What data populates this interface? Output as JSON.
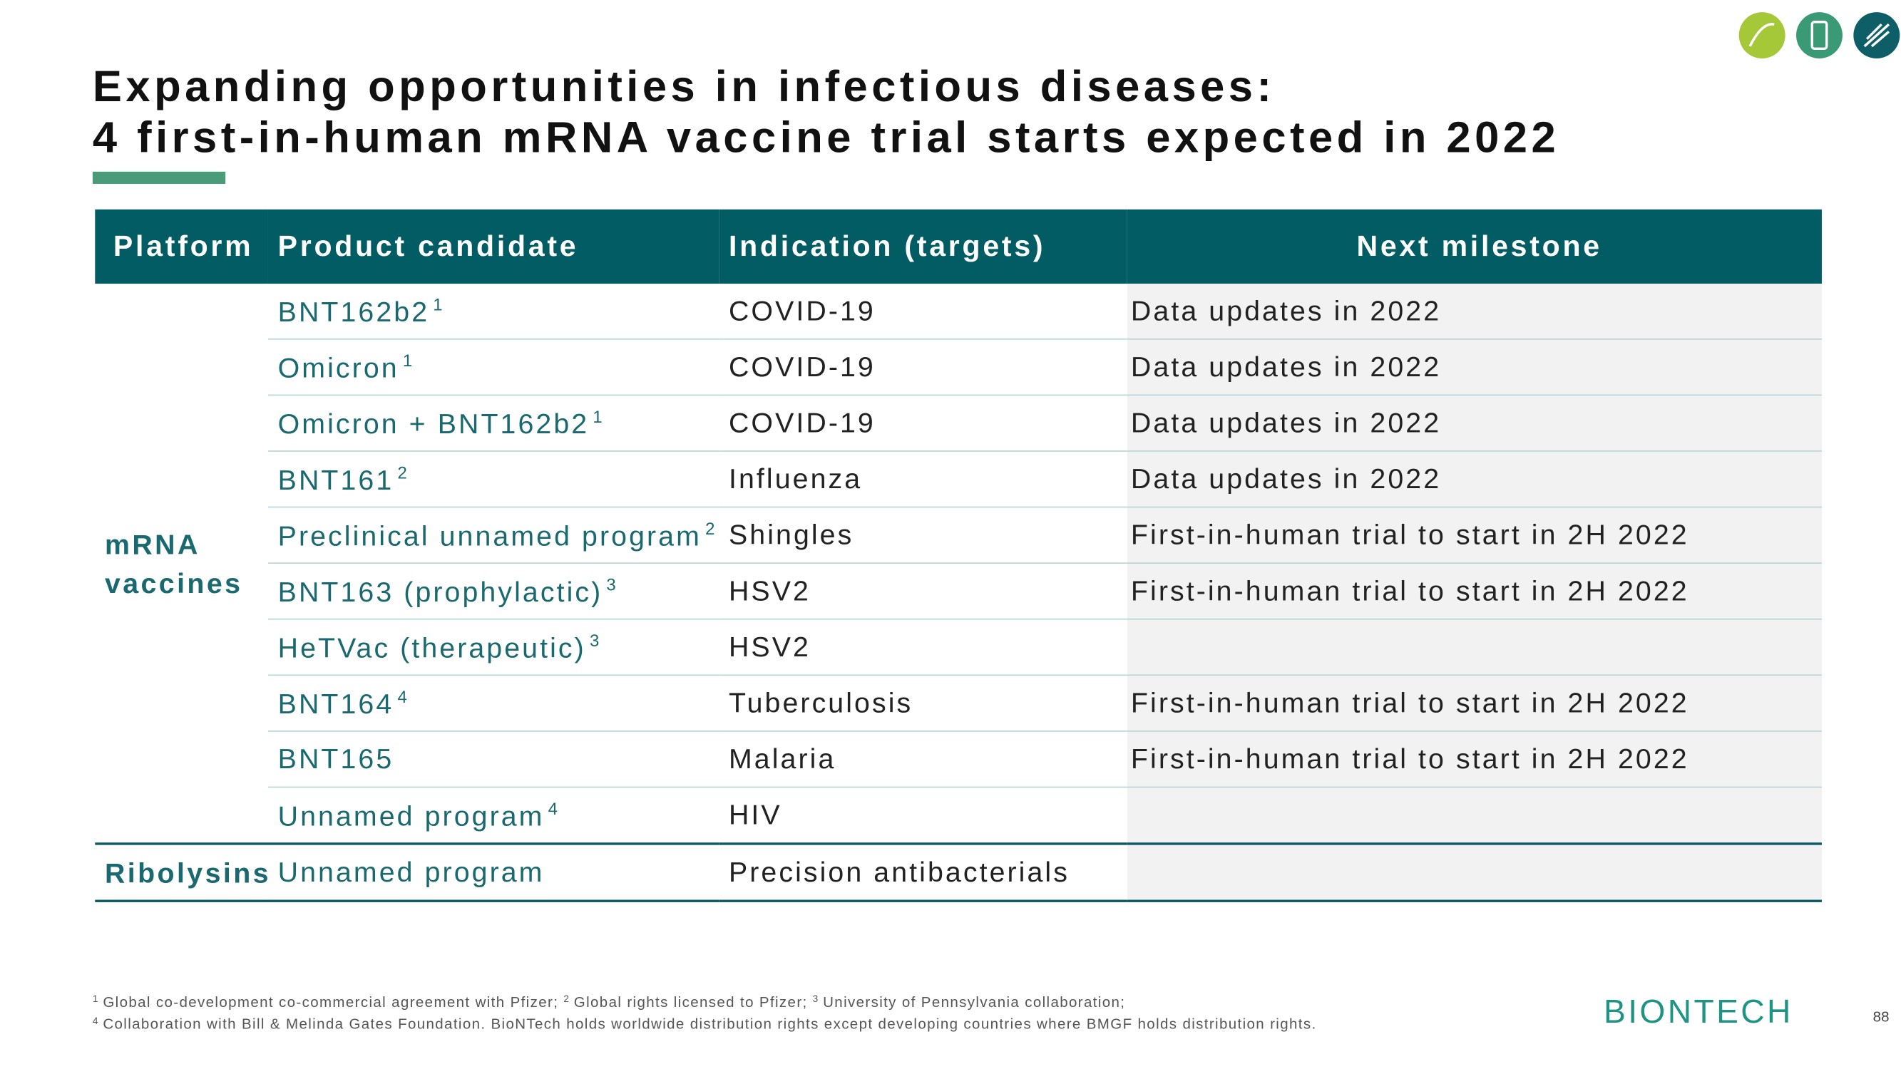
{
  "header": {
    "title_lines": [
      "Expanding opportunities in infectious diseases:",
      "4 first-in-human mRNA vaccine trial starts expected in 2022"
    ]
  },
  "table": {
    "columns": [
      "Platform",
      "Product candidate",
      "Indication (targets)",
      "Next milestone"
    ],
    "groups": [
      {
        "platform": "mRNA vaccines",
        "rows": [
          {
            "candidate": "BNT162b2",
            "note": "1",
            "indication": "COVID-19",
            "milestone": "Data updates in 2022"
          },
          {
            "candidate": "Omicron",
            "note": "1",
            "indication": "COVID-19",
            "milestone": "Data updates in 2022"
          },
          {
            "candidate": "Omicron + BNT162b2",
            "note": "1",
            "indication": "COVID-19",
            "milestone": "Data updates in 2022"
          },
          {
            "candidate": "BNT161",
            "note": "2",
            "indication": "Influenza",
            "milestone": "Data updates in 2022"
          },
          {
            "candidate": "Preclinical unnamed program",
            "note": "2",
            "indication": "Shingles",
            "milestone": "First-in-human trial to start in 2H 2022"
          },
          {
            "candidate": "BNT163 (prophylactic)",
            "note": "3",
            "indication": "HSV2",
            "milestone": "First-in-human trial to start in 2H 2022"
          },
          {
            "candidate": "HeTVac (therapeutic)",
            "note": "3",
            "indication": "HSV2",
            "milestone": null
          },
          {
            "candidate": "BNT164",
            "note": "4",
            "indication": "Tuberculosis",
            "milestone": "First-in-human trial to start in 2H 2022"
          },
          {
            "candidate": "BNT165",
            "note": null,
            "indication": "Malaria",
            "milestone": "First-in-human trial to start in 2H 2022"
          },
          {
            "candidate": "Unnamed program",
            "note": "4",
            "indication": "HIV",
            "milestone": null
          }
        ]
      },
      {
        "platform": "Ribolysins",
        "rows": [
          {
            "candidate": "Unnamed program",
            "note": null,
            "indication": "Precision antibacterials",
            "milestone": null
          }
        ]
      }
    ]
  },
  "footnotes": [
    [
      {
        "mark": "1",
        "text": "Global co-development co-commercial agreement with Pfizer;"
      },
      {
        "mark": "2",
        "text": "Global rights licensed to Pfizer;"
      },
      {
        "mark": "3",
        "text": "University of Pennsylvania collaboration;"
      }
    ],
    [
      {
        "mark": "4",
        "text": "Collaboration with Bill & Melinda Gates Foundation. BioNTech holds worldwide distribution rights except developing countries where BMGF holds distribution rights."
      }
    ]
  ],
  "footer": {
    "logo": "BIONTECH",
    "page_number": "88"
  }
}
